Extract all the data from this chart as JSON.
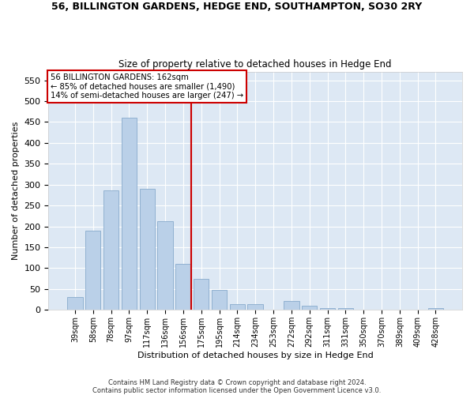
{
  "title1": "56, BILLINGTON GARDENS, HEDGE END, SOUTHAMPTON, SO30 2RY",
  "title2": "Size of property relative to detached houses in Hedge End",
  "xlabel": "Distribution of detached houses by size in Hedge End",
  "ylabel": "Number of detached properties",
  "categories": [
    "39sqm",
    "58sqm",
    "78sqm",
    "97sqm",
    "117sqm",
    "136sqm",
    "156sqm",
    "175sqm",
    "195sqm",
    "214sqm",
    "234sqm",
    "253sqm",
    "272sqm",
    "292sqm",
    "311sqm",
    "331sqm",
    "350sqm",
    "370sqm",
    "389sqm",
    "409sqm",
    "428sqm"
  ],
  "values": [
    30,
    190,
    287,
    460,
    291,
    213,
    110,
    74,
    47,
    13,
    13,
    0,
    21,
    10,
    5,
    5,
    0,
    0,
    0,
    0,
    5
  ],
  "bar_color": "#bad0e8",
  "bar_edge_color": "#88aacc",
  "vline_color": "#cc0000",
  "annotation_title": "56 BILLINGTON GARDENS: 162sqm",
  "annotation_line1": "← 85% of detached houses are smaller (1,490)",
  "annotation_line2": "14% of semi-detached houses are larger (247) →",
  "ylim": [
    0,
    570
  ],
  "yticks": [
    0,
    50,
    100,
    150,
    200,
    250,
    300,
    350,
    400,
    450,
    500,
    550
  ],
  "footer1": "Contains HM Land Registry data © Crown copyright and database right 2024.",
  "footer2": "Contains public sector information licensed under the Open Government Licence v3.0.",
  "bg_color": "#ffffff",
  "plot_bg_color": "#dde8f4"
}
